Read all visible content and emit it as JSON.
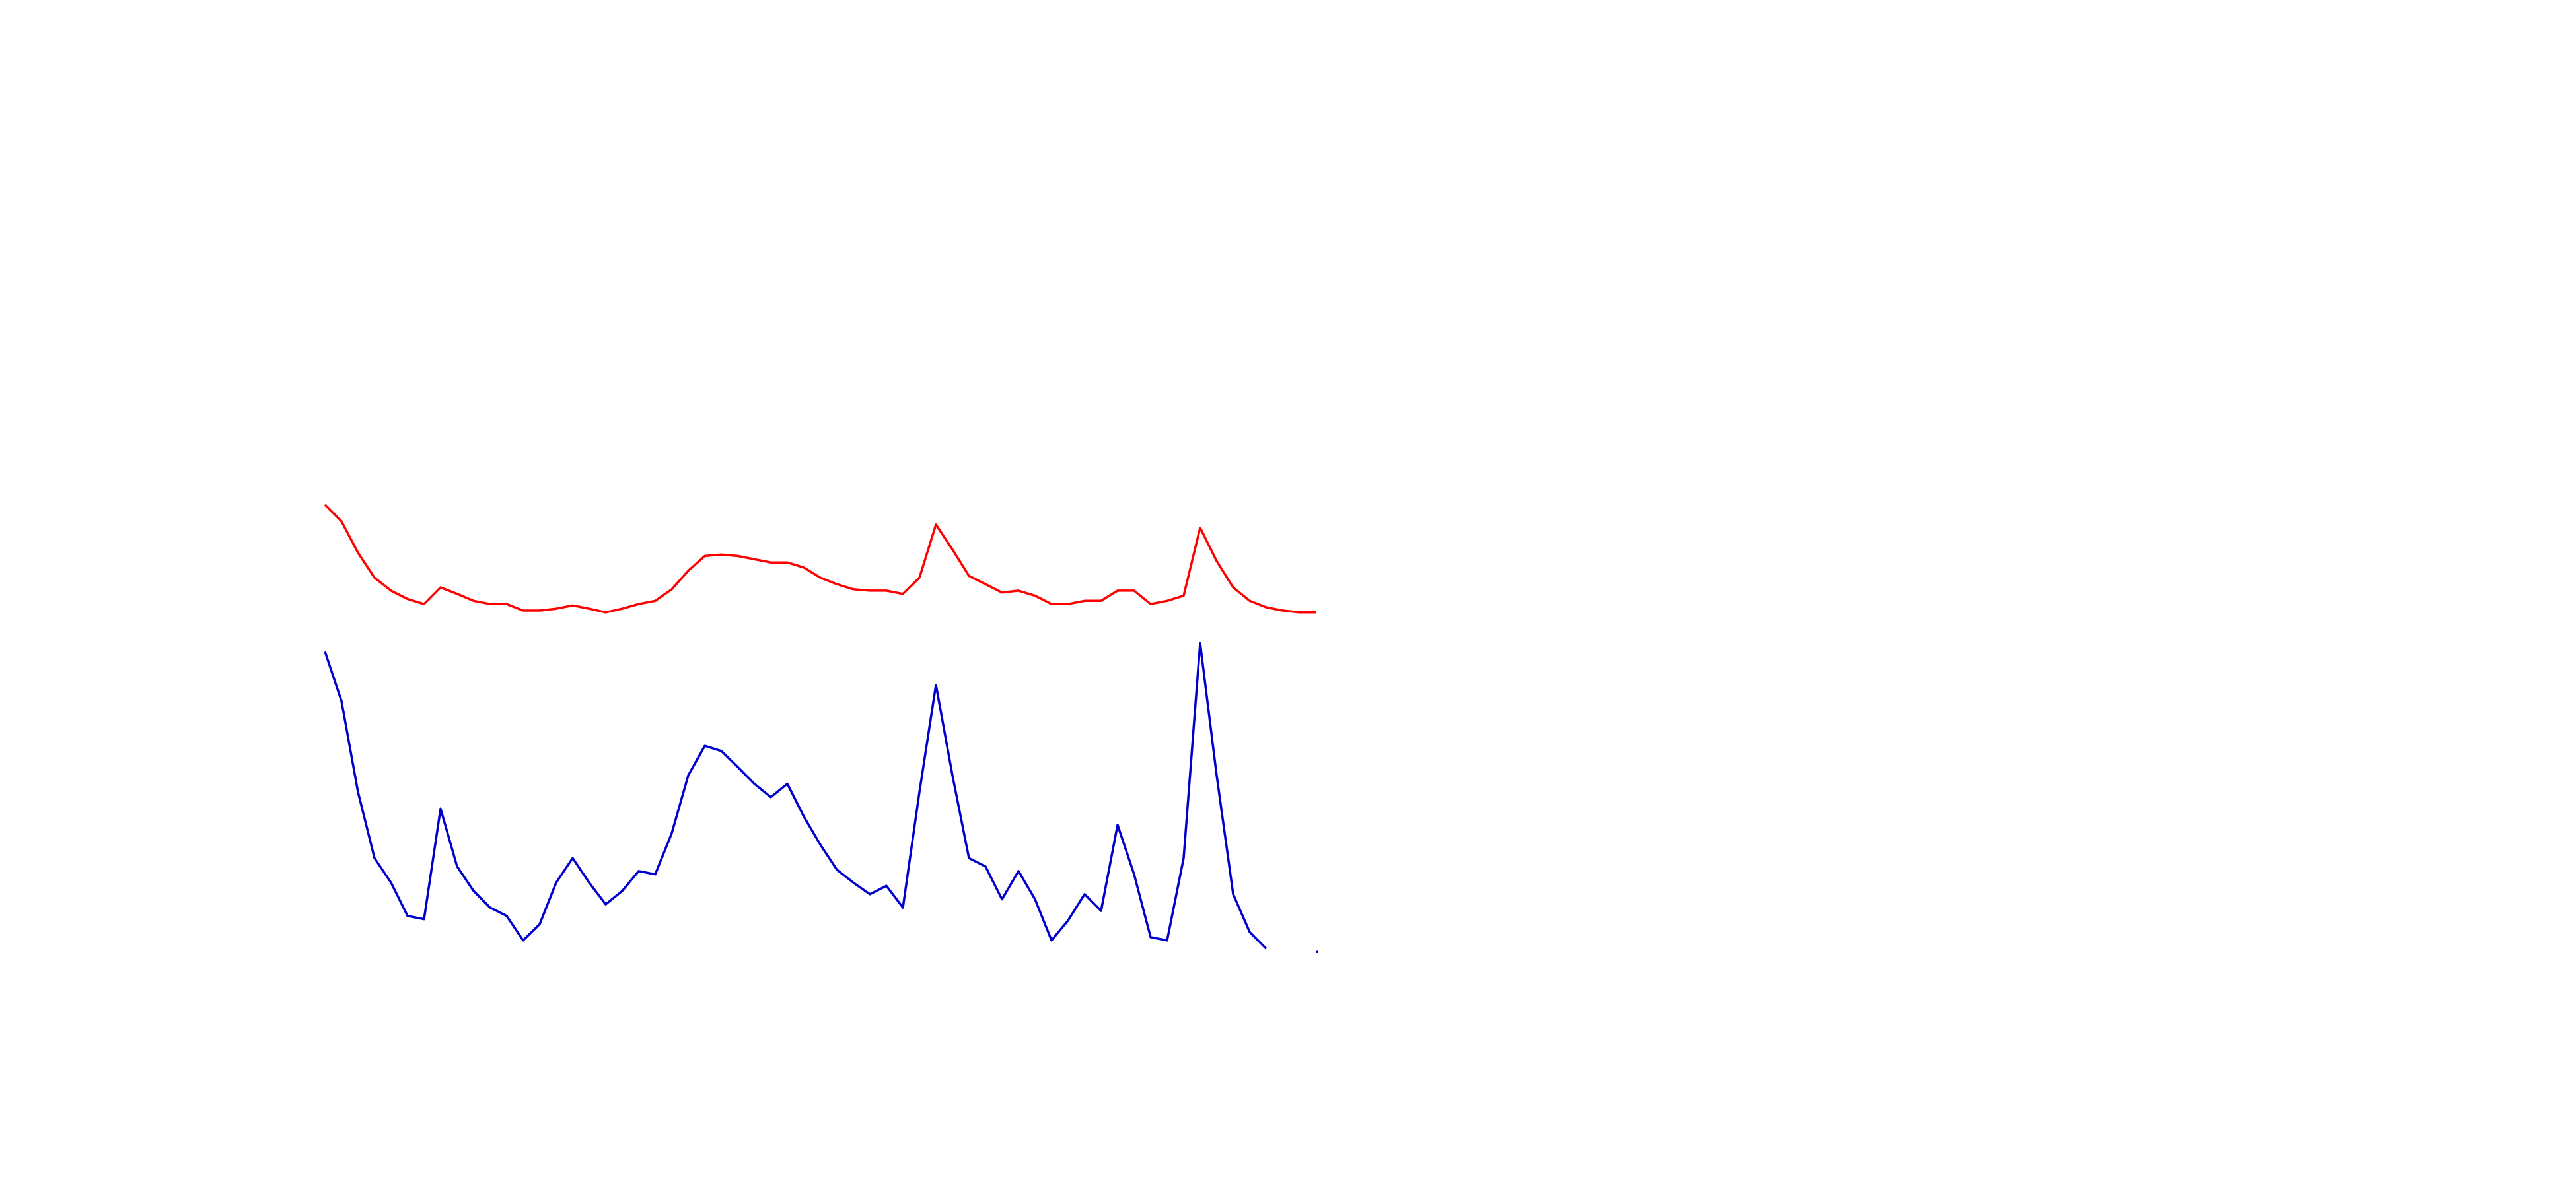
{
  "chart_data": {
    "type": "line",
    "categories": [
      null,
      null,
      null,
      null,
      null,
      null,
      null,
      null,
      null,
      null,
      null,
      null,
      null,
      null,
      null,
      null,
      null,
      null,
      null,
      null,
      null,
      null,
      null,
      null,
      null,
      null,
      null,
      null,
      null,
      null,
      null,
      null,
      null,
      null,
      null,
      null,
      null,
      null,
      null,
      null,
      null,
      null,
      null,
      null,
      null,
      null,
      null,
      null,
      null,
      null,
      null,
      null,
      null,
      null,
      null,
      null,
      null,
      null,
      null,
      null,
      null
    ],
    "ylim": [
      0,
      100
    ],
    "series": [
      {
        "color": "#ff0000",
        "values": [
          97.9,
          94.3,
          87.5,
          82.1,
          79.3,
          77.5,
          76.4,
          80.0,
          78.6,
          77.1,
          76.4,
          76.4,
          75.0,
          75.0,
          75.4,
          76.1,
          75.4,
          74.6,
          75.4,
          76.4,
          77.1,
          79.6,
          83.6,
          86.8,
          87.1,
          86.8,
          86.1,
          85.4,
          85.4,
          84.3,
          82.1,
          80.7,
          79.6,
          79.3,
          79.3,
          78.6,
          82.1,
          93.6,
          88.2,
          82.5,
          80.7,
          78.9,
          79.3,
          78.2,
          76.4,
          76.4,
          77.1,
          77.1,
          79.3,
          79.3,
          76.4,
          77.1,
          78.2,
          92.9,
          85.7,
          80.0,
          77.1,
          75.7,
          75.0,
          74.6,
          74.6
        ]
      },
      {
        "color": "#0000cc",
        "values": [
          66.1,
          55.4,
          35.7,
          21.4,
          16.1,
          8.9,
          8.2,
          32.1,
          19.6,
          14.3,
          10.7,
          8.9,
          3.6,
          7.1,
          16.1,
          21.4,
          16.1,
          11.4,
          14.3,
          18.6,
          17.9,
          26.8,
          39.3,
          45.7,
          44.6,
          41.1,
          37.5,
          34.6,
          37.5,
          30.4,
          24.3,
          18.9,
          16.1,
          13.6,
          15.4,
          10.7,
          35.7,
          58.9,
          39.3,
          21.4,
          19.6,
          12.5,
          18.6,
          12.5,
          3.6,
          7.9,
          13.6,
          10.0,
          28.6,
          17.9,
          4.3,
          3.6,
          21.4,
          67.9,
          39.3,
          13.6,
          5.4,
          1.8,
          null,
          null,
          1.1
        ]
      }
    ]
  }
}
